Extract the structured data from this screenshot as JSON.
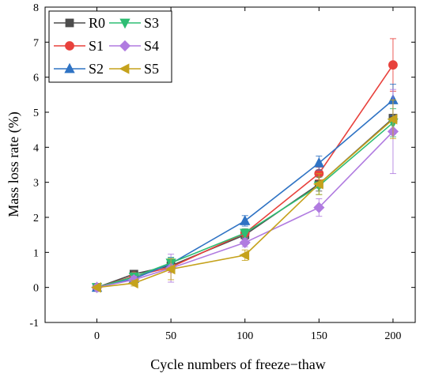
{
  "chart_data": {
    "type": "line",
    "title": "",
    "xlabel": "Cycle numbers of freeze−thaw",
    "ylabel": "Mass loss rate (%)",
    "xlim": [
      -35,
      215
    ],
    "ylim": [
      -1,
      8
    ],
    "xticks": [
      0,
      50,
      100,
      150,
      200
    ],
    "yticks": [
      -1,
      0,
      1,
      2,
      3,
      4,
      5,
      6,
      7,
      8
    ],
    "x": [
      0,
      25,
      50,
      100,
      150,
      200
    ],
    "grid": false,
    "legend": "top-left",
    "series": [
      {
        "name": "R0",
        "color": "#4d4d4d",
        "marker": "square",
        "values": [
          0,
          0.38,
          0.62,
          1.5,
          2.95,
          4.83
        ],
        "errors": [
          0.05,
          0.08,
          0.12,
          0.12,
          0.2,
          0.45
        ]
      },
      {
        "name": "S1",
        "color": "#e8413c",
        "marker": "circle",
        "values": [
          0,
          0.32,
          0.58,
          1.55,
          3.25,
          6.35
        ],
        "errors": [
          0.05,
          0.1,
          0.15,
          0.12,
          0.18,
          0.75
        ]
      },
      {
        "name": "S2",
        "color": "#2f73c4",
        "marker": "triangle-up",
        "values": [
          0,
          0.25,
          0.68,
          1.9,
          3.55,
          5.35
        ],
        "errors": [
          0.05,
          0.1,
          0.18,
          0.15,
          0.2,
          0.45
        ]
      },
      {
        "name": "S3",
        "color": "#2ebd73",
        "marker": "triangle-down",
        "values": [
          0,
          0.3,
          0.7,
          1.55,
          2.9,
          4.7
        ],
        "errors": [
          0.05,
          0.12,
          0.15,
          0.12,
          0.25,
          0.4
        ]
      },
      {
        "name": "S4",
        "color": "#b07be0",
        "marker": "diamond",
        "values": [
          0,
          0.22,
          0.55,
          1.28,
          2.28,
          4.45
        ],
        "errors": [
          0.05,
          0.1,
          0.4,
          0.12,
          0.25,
          1.2
        ]
      },
      {
        "name": "S5",
        "color": "#c5a21c",
        "marker": "triangle-left",
        "values": [
          0,
          0.12,
          0.52,
          0.92,
          2.95,
          4.8
        ],
        "errors": [
          0.05,
          0.08,
          0.3,
          0.15,
          0.3,
          0.55
        ]
      }
    ]
  }
}
